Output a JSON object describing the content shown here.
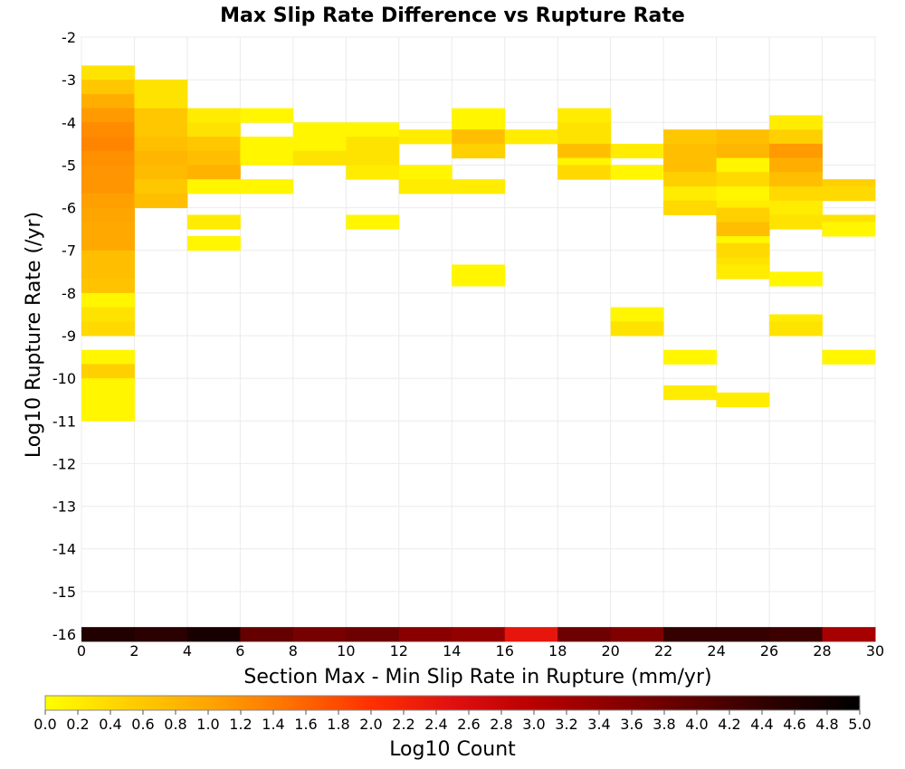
{
  "chart_data": {
    "type": "heatmap",
    "title": "Max Slip Rate Difference vs Rupture Rate",
    "xlabel": "Section Max - Min Slip Rate in Rupture (mm/yr)",
    "ylabel": "Log10 Rupture Rate (/yr)",
    "xlim": [
      0,
      30
    ],
    "ylim": [
      -16,
      -2
    ],
    "x_ticks": [
      "0",
      "2",
      "4",
      "6",
      "8",
      "10",
      "12",
      "14",
      "16",
      "18",
      "20",
      "22",
      "24",
      "26",
      "28",
      "30"
    ],
    "y_ticks": [
      "-2",
      "-3",
      "-4",
      "-5",
      "-6",
      "-7",
      "-8",
      "-9",
      "-10",
      "-11",
      "-12",
      "-13",
      "-14",
      "-15",
      "-16"
    ],
    "cell_width": 2,
    "cell_height": 0.3333,
    "grid": true,
    "colorbar": {
      "label": "Log10 Count",
      "range": [
        0,
        5
      ],
      "ticks": [
        "0.0",
        "0.2",
        "0.4",
        "0.6",
        "0.8",
        "1.0",
        "1.2",
        "1.4",
        "1.6",
        "1.8",
        "2.0",
        "2.2",
        "2.4",
        "2.6",
        "2.8",
        "3.0",
        "3.2",
        "3.4",
        "3.6",
        "3.8",
        "4.0",
        "4.2",
        "4.4",
        "4.6",
        "4.8",
        "5.0"
      ],
      "colors": [
        "#ffff00",
        "#ffd000",
        "#ffa500",
        "#ff7000",
        "#ff3000",
        "#e01010",
        "#b80000",
        "#8a0000",
        "#5a0000",
        "#2a0000",
        "#000000"
      ],
      "placement": "bottom"
    },
    "cells": [
      {
        "x": 0,
        "y": -2.833,
        "v": 0.3
      },
      {
        "x": 0,
        "y": -3.167,
        "v": 0.6
      },
      {
        "x": 0,
        "y": -3.5,
        "v": 0.9
      },
      {
        "x": 0,
        "y": -3.833,
        "v": 1.1
      },
      {
        "x": 0,
        "y": -4.167,
        "v": 1.25
      },
      {
        "x": 0,
        "y": -4.5,
        "v": 1.3
      },
      {
        "x": 0,
        "y": -4.833,
        "v": 1.2
      },
      {
        "x": 0,
        "y": -5.167,
        "v": 1.15
      },
      {
        "x": 0,
        "y": -5.5,
        "v": 1.15
      },
      {
        "x": 0,
        "y": -5.833,
        "v": 1.05
      },
      {
        "x": 0,
        "y": -6.167,
        "v": 1.0
      },
      {
        "x": 0,
        "y": -6.5,
        "v": 0.95
      },
      {
        "x": 0,
        "y": -6.833,
        "v": 0.95
      },
      {
        "x": 0,
        "y": -7.167,
        "v": 0.7
      },
      {
        "x": 0,
        "y": -7.5,
        "v": 0.7
      },
      {
        "x": 0,
        "y": -7.833,
        "v": 0.65
      },
      {
        "x": 0,
        "y": -8.167,
        "v": 0.1
      },
      {
        "x": 0,
        "y": -8.5,
        "v": 0.3
      },
      {
        "x": 0,
        "y": -8.833,
        "v": 0.4
      },
      {
        "x": 0,
        "y": -9.5,
        "v": 0.1
      },
      {
        "x": 0,
        "y": -9.833,
        "v": 0.5
      },
      {
        "x": 0,
        "y": -10.167,
        "v": 0.1
      },
      {
        "x": 0,
        "y": -10.5,
        "v": 0.1
      },
      {
        "x": 0,
        "y": -10.833,
        "v": 0.1
      },
      {
        "x": 2,
        "y": -3.167,
        "v": 0.3
      },
      {
        "x": 2,
        "y": -3.5,
        "v": 0.3
      },
      {
        "x": 2,
        "y": -3.833,
        "v": 0.6
      },
      {
        "x": 2,
        "y": -4.167,
        "v": 0.6
      },
      {
        "x": 2,
        "y": -4.5,
        "v": 0.7
      },
      {
        "x": 2,
        "y": -4.833,
        "v": 0.8
      },
      {
        "x": 2,
        "y": -5.167,
        "v": 0.75
      },
      {
        "x": 2,
        "y": -5.5,
        "v": 0.6
      },
      {
        "x": 2,
        "y": -5.833,
        "v": 0.7
      },
      {
        "x": 4,
        "y": -3.833,
        "v": 0.2
      },
      {
        "x": 4,
        "y": -4.167,
        "v": 0.3
      },
      {
        "x": 4,
        "y": -4.5,
        "v": 0.6
      },
      {
        "x": 4,
        "y": -4.833,
        "v": 0.7
      },
      {
        "x": 4,
        "y": -5.167,
        "v": 0.85
      },
      {
        "x": 4,
        "y": -5.5,
        "v": 0.1
      },
      {
        "x": 4,
        "y": -6.333,
        "v": 0.2
      },
      {
        "x": 4,
        "y": -6.833,
        "v": 0.1
      },
      {
        "x": 6,
        "y": -3.833,
        "v": 0.1
      },
      {
        "x": 6,
        "y": -4.5,
        "v": 0.1
      },
      {
        "x": 6,
        "y": -4.833,
        "v": 0.1
      },
      {
        "x": 6,
        "y": -5.5,
        "v": 0.1
      },
      {
        "x": 8,
        "y": -4.167,
        "v": 0.1
      },
      {
        "x": 8,
        "y": -4.5,
        "v": 0.1
      },
      {
        "x": 8,
        "y": -4.833,
        "v": 0.3
      },
      {
        "x": 10,
        "y": -4.167,
        "v": 0.1
      },
      {
        "x": 10,
        "y": -4.5,
        "v": 0.3
      },
      {
        "x": 10,
        "y": -4.833,
        "v": 0.3
      },
      {
        "x": 10,
        "y": -5.167,
        "v": 0.2
      },
      {
        "x": 10,
        "y": -6.333,
        "v": 0.1
      },
      {
        "x": 12,
        "y": -4.333,
        "v": 0.2
      },
      {
        "x": 12,
        "y": -5.167,
        "v": 0.1
      },
      {
        "x": 12,
        "y": -5.5,
        "v": 0.2
      },
      {
        "x": 14,
        "y": -3.833,
        "v": 0.1
      },
      {
        "x": 14,
        "y": -4.167,
        "v": 0.1
      },
      {
        "x": 14,
        "y": -4.333,
        "v": 0.7
      },
      {
        "x": 14,
        "y": -4.667,
        "v": 0.5
      },
      {
        "x": 14,
        "y": -5.5,
        "v": 0.2
      },
      {
        "x": 14,
        "y": -7.5,
        "v": 0.1
      },
      {
        "x": 14,
        "y": -7.667,
        "v": 0.1
      },
      {
        "x": 16,
        "y": -4.333,
        "v": 0.2
      },
      {
        "x": 18,
        "y": -3.833,
        "v": 0.2
      },
      {
        "x": 18,
        "y": -4.167,
        "v": 0.3
      },
      {
        "x": 18,
        "y": -4.5,
        "v": 0.3
      },
      {
        "x": 18,
        "y": -4.667,
        "v": 0.7
      },
      {
        "x": 18,
        "y": -5.0,
        "v": 0.1
      },
      {
        "x": 18,
        "y": -5.167,
        "v": 0.4
      },
      {
        "x": 20,
        "y": -4.667,
        "v": 0.2
      },
      {
        "x": 20,
        "y": -5.167,
        "v": 0.1
      },
      {
        "x": 20,
        "y": -8.5,
        "v": 0.1
      },
      {
        "x": 20,
        "y": -8.833,
        "v": 0.3
      },
      {
        "x": 22,
        "y": -4.333,
        "v": 0.6
      },
      {
        "x": 22,
        "y": -4.667,
        "v": 0.7
      },
      {
        "x": 22,
        "y": -5.0,
        "v": 0.7
      },
      {
        "x": 22,
        "y": -5.333,
        "v": 0.5
      },
      {
        "x": 22,
        "y": -5.667,
        "v": 0.2
      },
      {
        "x": 22,
        "y": -6.0,
        "v": 0.4
      },
      {
        "x": 22,
        "y": -9.5,
        "v": 0.1
      },
      {
        "x": 22,
        "y": -10.333,
        "v": 0.2
      },
      {
        "x": 24,
        "y": -4.333,
        "v": 0.7
      },
      {
        "x": 24,
        "y": -4.667,
        "v": 0.8
      },
      {
        "x": 24,
        "y": -5.0,
        "v": 0.1
      },
      {
        "x": 24,
        "y": -5.333,
        "v": 0.4
      },
      {
        "x": 24,
        "y": -5.667,
        "v": 0.1
      },
      {
        "x": 24,
        "y": -6.0,
        "v": 0.2
      },
      {
        "x": 24,
        "y": -6.167,
        "v": 0.5
      },
      {
        "x": 24,
        "y": -6.5,
        "v": 0.7
      },
      {
        "x": 24,
        "y": -6.833,
        "v": 0.1
      },
      {
        "x": 24,
        "y": -7.0,
        "v": 0.4
      },
      {
        "x": 24,
        "y": -7.333,
        "v": 0.3
      },
      {
        "x": 24,
        "y": -7.5,
        "v": 0.2
      },
      {
        "x": 24,
        "y": -10.5,
        "v": 0.2
      },
      {
        "x": 26,
        "y": -4.0,
        "v": 0.2
      },
      {
        "x": 26,
        "y": -4.333,
        "v": 0.5
      },
      {
        "x": 26,
        "y": -4.667,
        "v": 1.1
      },
      {
        "x": 26,
        "y": -5.0,
        "v": 0.9
      },
      {
        "x": 26,
        "y": -5.333,
        "v": 0.7
      },
      {
        "x": 26,
        "y": -5.667,
        "v": 0.4
      },
      {
        "x": 26,
        "y": -6.0,
        "v": 0.2
      },
      {
        "x": 26,
        "y": -6.333,
        "v": 0.3
      },
      {
        "x": 26,
        "y": -7.667,
        "v": 0.1
      },
      {
        "x": 26,
        "y": -8.667,
        "v": 0.2
      },
      {
        "x": 26,
        "y": -8.833,
        "v": 0.3
      },
      {
        "x": 28,
        "y": -5.5,
        "v": 0.5
      },
      {
        "x": 28,
        "y": -5.667,
        "v": 0.4
      },
      {
        "x": 28,
        "y": -6.333,
        "v": 0.3
      },
      {
        "x": 28,
        "y": -6.5,
        "v": 0.1
      },
      {
        "x": 28,
        "y": -9.5,
        "v": 0.1
      },
      {
        "x": 0,
        "y": -16,
        "v": 4.6
      },
      {
        "x": 2,
        "y": -16,
        "v": 4.5
      },
      {
        "x": 4,
        "y": -16,
        "v": 4.7
      },
      {
        "x": 6,
        "y": -16,
        "v": 3.9
      },
      {
        "x": 8,
        "y": -16,
        "v": 3.7
      },
      {
        "x": 10,
        "y": -16,
        "v": 3.8
      },
      {
        "x": 12,
        "y": -16,
        "v": 3.5
      },
      {
        "x": 14,
        "y": -16,
        "v": 3.4
      },
      {
        "x": 16,
        "y": -16,
        "v": 2.4
      },
      {
        "x": 18,
        "y": -16,
        "v": 3.8
      },
      {
        "x": 20,
        "y": -16,
        "v": 3.6
      },
      {
        "x": 22,
        "y": -16,
        "v": 4.4
      },
      {
        "x": 24,
        "y": -16,
        "v": 4.4
      },
      {
        "x": 26,
        "y": -16,
        "v": 4.3
      },
      {
        "x": 28,
        "y": -16,
        "v": 3.2
      }
    ]
  }
}
